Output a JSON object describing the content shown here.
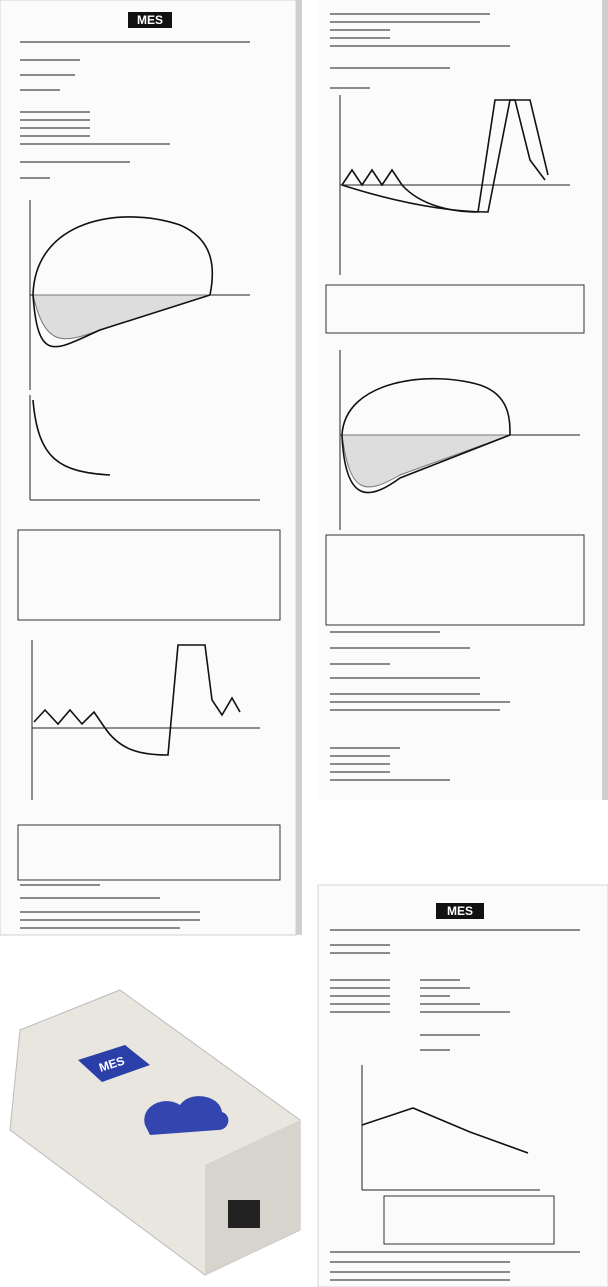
{
  "report_left": {
    "logo": "MES"
  },
  "report_bottom_right": {
    "logo": "MES"
  },
  "device": {
    "logo": "MES"
  }
}
